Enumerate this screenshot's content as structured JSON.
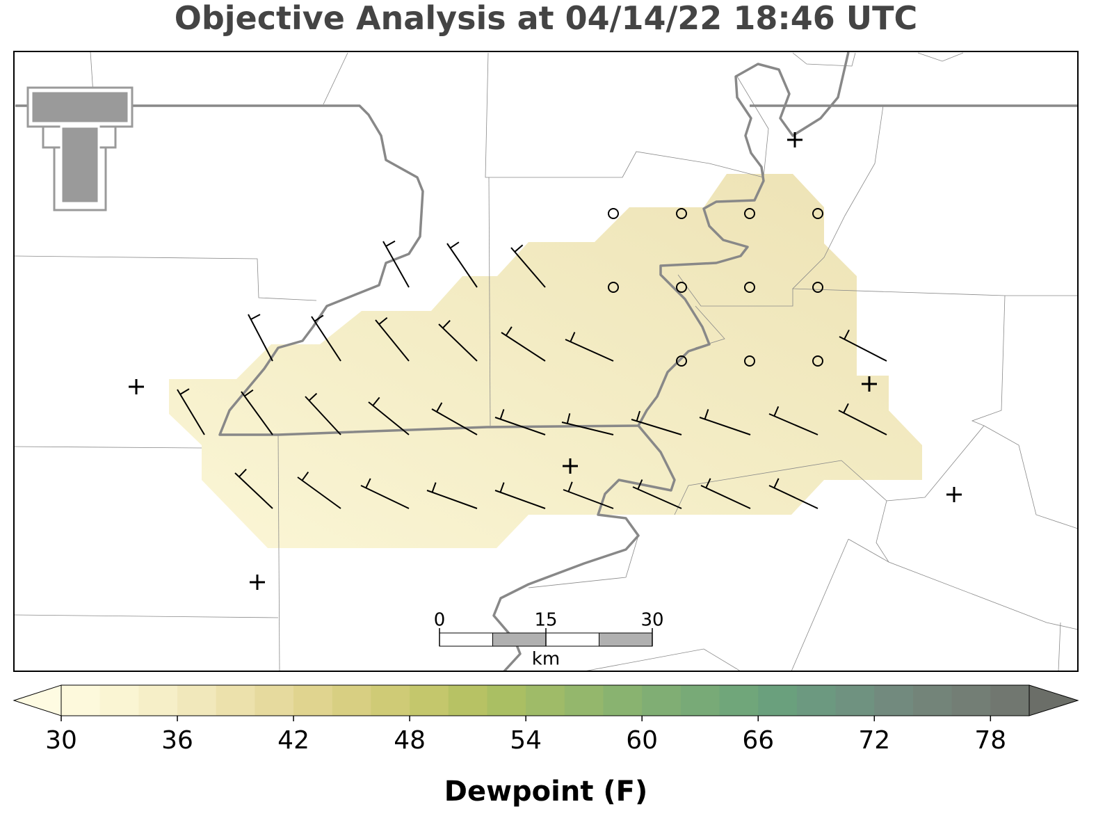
{
  "title": "Objective Analysis at 04/14/22 18:46 UTC",
  "colorbar": {
    "label": "Dewpoint (F)",
    "range": [
      30,
      80
    ],
    "ticks": [
      30,
      36,
      42,
      48,
      54,
      60,
      66,
      72,
      78
    ],
    "colors": [
      "#fdf9dc",
      "#faf5d3",
      "#f6efc8",
      "#f1e8bb",
      "#ece1ac",
      "#e6da9e",
      "#e0d48f",
      "#d8cf82",
      "#cfcb76",
      "#c4c76c",
      "#b7c264",
      "#aabf63",
      "#9fbb68",
      "#94b76c",
      "#89b370",
      "#80ae74",
      "#78aa77",
      "#70a67a",
      "#6aa07d",
      "#6c9980",
      "#6f9280",
      "#728a7e",
      "#738479",
      "#737e75",
      "#717770"
    ],
    "under_color": "#fefbe2",
    "over_color": "#6b6e68"
  },
  "scale_bar": {
    "ticks": [
      0,
      15,
      30
    ],
    "unit": "km"
  }
}
